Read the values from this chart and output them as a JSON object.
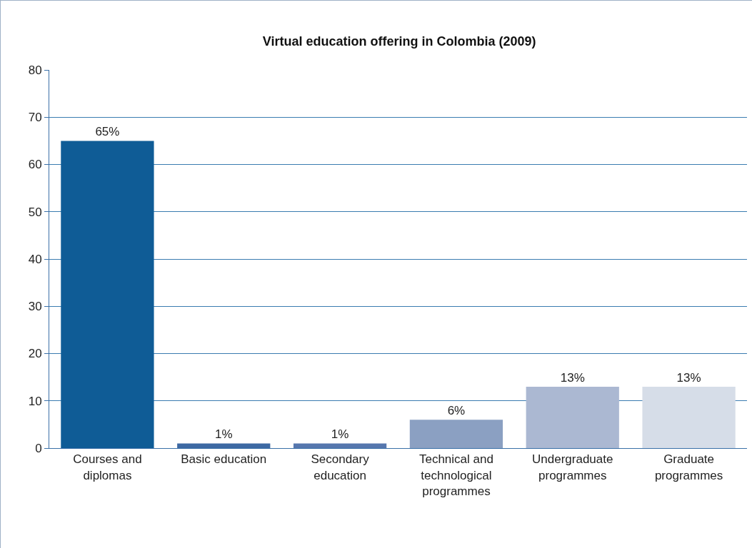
{
  "chart_data": {
    "type": "bar",
    "title": "Virtual education offering in Colombia (2009)",
    "categories": [
      "Courses and diplomas",
      "Basic education",
      "Secondary education",
      "Technical and technological programmes",
      "Undergraduate programmes",
      "Graduate programmes"
    ],
    "values": [
      65,
      1,
      1,
      6,
      13,
      13
    ],
    "colors": [
      "#0f5c96",
      "#3d69a3",
      "#5677ae",
      "#8ba0c2",
      "#abb8d2",
      "#d6dde8"
    ],
    "value_labels": [
      "65%",
      "1%",
      "1%",
      "6%",
      "13%",
      "13%"
    ],
    "ylim": [
      0,
      80
    ],
    "yticks": [
      0,
      10,
      20,
      30,
      40,
      50,
      60,
      70,
      80
    ],
    "grid": "y",
    "legend": false
  }
}
